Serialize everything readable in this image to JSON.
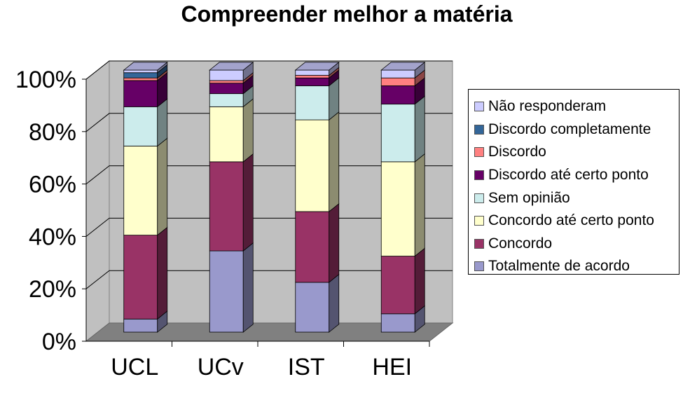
{
  "chart_data": {
    "type": "bar",
    "stacked": true,
    "normalized_percent": true,
    "title": "Compreender melhor a matéria",
    "xlabel": "",
    "ylabel": "",
    "categories": [
      "UCL",
      "UCv",
      "IST",
      "HEI"
    ],
    "y_ticks": [
      "0%",
      "20%",
      "40%",
      "60%",
      "80%",
      "100%"
    ],
    "ylim": [
      0,
      100
    ],
    "grid": true,
    "legend_placement": "right",
    "series": [
      {
        "name": "Totalmente de acordo",
        "color": "#9999cc",
        "values": [
          5,
          31,
          19,
          7
        ]
      },
      {
        "name": "Concordo",
        "color": "#993366",
        "values": [
          32,
          34,
          27,
          22
        ]
      },
      {
        "name": "Concordo até certo ponto",
        "color": "#ffffcc",
        "values": [
          34,
          21,
          35,
          36
        ]
      },
      {
        "name": "Sem opinião",
        "color": "#ccecec",
        "values": [
          15,
          5,
          13,
          22
        ]
      },
      {
        "name": "Discordo até certo ponto",
        "color": "#660066",
        "values": [
          10,
          4,
          3,
          7
        ]
      },
      {
        "name": "Discordo",
        "color": "#ff8080",
        "values": [
          1,
          1,
          1,
          3
        ]
      },
      {
        "name": "Discordo completamente",
        "color": "#336699",
        "values": [
          2,
          0,
          0,
          0
        ]
      },
      {
        "name": "Não responderam",
        "color": "#ccccff",
        "values": [
          1,
          4,
          2,
          3
        ]
      }
    ]
  }
}
